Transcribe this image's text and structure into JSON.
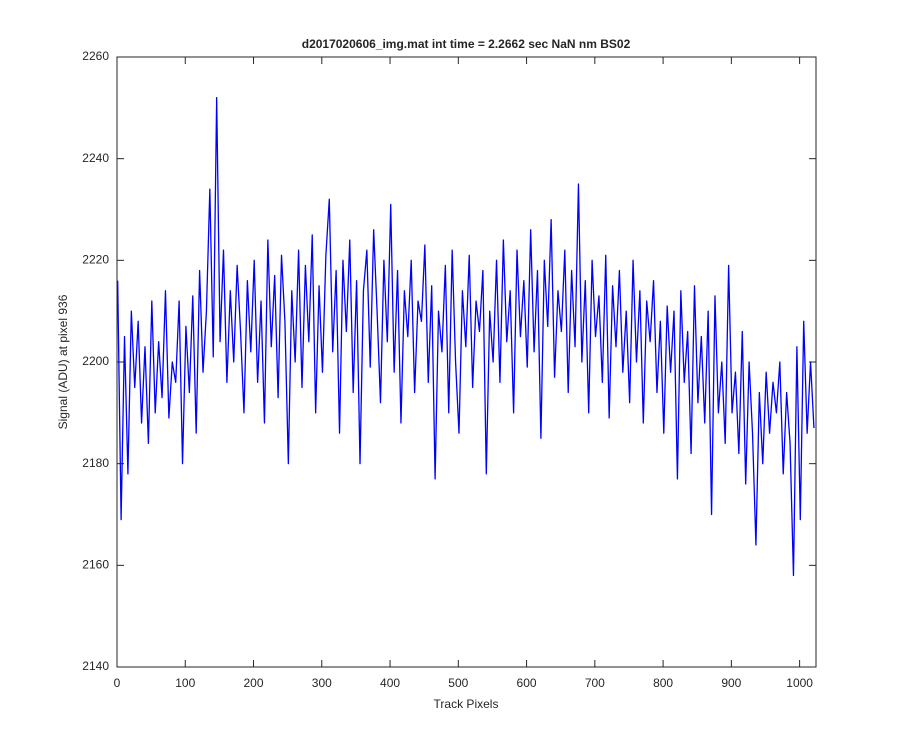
{
  "chart_data": {
    "type": "line",
    "title": "d2017020606_img.mat int time = 2.2662 sec  NaN nm BS02",
    "x_label": "Track Pixels",
    "y_label": "Signal (ADU) at pixel 936",
    "color": "#0000ff",
    "xlim": [
      0,
      1024
    ],
    "ylim": [
      2140,
      2260
    ],
    "xticks": [
      0,
      100,
      200,
      300,
      400,
      500,
      600,
      700,
      800,
      900,
      1000
    ],
    "yticks": [
      2140,
      2160,
      2180,
      2200,
      2220,
      2240,
      2260
    ],
    "x": [
      1,
      6,
      11,
      16,
      21,
      26,
      31,
      36,
      41,
      46,
      51,
      56,
      61,
      66,
      71,
      76,
      81,
      86,
      91,
      96,
      101,
      106,
      111,
      116,
      121,
      126,
      131,
      136,
      141,
      146,
      151,
      156,
      161,
      166,
      171,
      176,
      181,
      186,
      191,
      196,
      201,
      206,
      211,
      216,
      221,
      226,
      231,
      236,
      241,
      246,
      251,
      256,
      261,
      266,
      271,
      276,
      281,
      286,
      291,
      296,
      301,
      306,
      311,
      316,
      321,
      326,
      331,
      336,
      341,
      346,
      351,
      356,
      361,
      366,
      371,
      376,
      381,
      386,
      391,
      396,
      401,
      406,
      411,
      416,
      421,
      426,
      431,
      436,
      441,
      446,
      451,
      456,
      461,
      466,
      471,
      476,
      481,
      486,
      491,
      496,
      501,
      506,
      511,
      516,
      521,
      526,
      531,
      536,
      541,
      546,
      551,
      556,
      561,
      566,
      571,
      576,
      581,
      586,
      591,
      596,
      601,
      606,
      611,
      616,
      621,
      626,
      631,
      636,
      641,
      646,
      651,
      656,
      661,
      666,
      671,
      676,
      681,
      686,
      691,
      696,
      701,
      706,
      711,
      716,
      721,
      726,
      731,
      736,
      741,
      746,
      751,
      756,
      761,
      766,
      771,
      776,
      781,
      786,
      791,
      796,
      801,
      806,
      811,
      816,
      821,
      826,
      831,
      836,
      841,
      846,
      851,
      856,
      861,
      866,
      871,
      876,
      881,
      886,
      891,
      896,
      901,
      906,
      911,
      916,
      921,
      926,
      931,
      936,
      941,
      946,
      951,
      956,
      961,
      966,
      971,
      976,
      981,
      986,
      991,
      996,
      1001,
      1006,
      1011,
      1016,
      1021
    ],
    "values": [
      2216,
      2169,
      2205,
      2178,
      2210,
      2195,
      2208,
      2188,
      2203,
      2184,
      2212,
      2190,
      2204,
      2193,
      2214,
      2189,
      2200,
      2196,
      2212,
      2180,
      2207,
      2194,
      2213,
      2186,
      2218,
      2198,
      2210,
      2234,
      2201,
      2252,
      2204,
      2222,
      2196,
      2214,
      2200,
      2219,
      2206,
      2190,
      2216,
      2202,
      2220,
      2196,
      2212,
      2188,
      2224,
      2203,
      2217,
      2193,
      2221,
      2208,
      2180,
      2214,
      2200,
      2222,
      2195,
      2219,
      2204,
      2225,
      2190,
      2215,
      2198,
      2221,
      2232,
      2202,
      2218,
      2186,
      2220,
      2206,
      2224,
      2194,
      2216,
      2180,
      2214,
      2222,
      2199,
      2226,
      2210,
      2192,
      2220,
      2204,
      2231,
      2198,
      2218,
      2188,
      2214,
      2205,
      2220,
      2194,
      2212,
      2208,
      2223,
      2196,
      2215,
      2177,
      2210,
      2202,
      2219,
      2190,
      2222,
      2200,
      2186,
      2214,
      2203,
      2221,
      2195,
      2212,
      2206,
      2218,
      2178,
      2210,
      2200,
      2220,
      2196,
      2224,
      2204,
      2214,
      2190,
      2222,
      2205,
      2216,
      2199,
      2226,
      2202,
      2218,
      2185,
      2220,
      2207,
      2228,
      2197,
      2214,
      2206,
      2222,
      2194,
      2218,
      2203,
      2235,
      2200,
      2216,
      2190,
      2220,
      2205,
      2213,
      2196,
      2221,
      2189,
      2215,
      2203,
      2218,
      2198,
      2210,
      2192,
      2220,
      2200,
      2214,
      2188,
      2212,
      2204,
      2216,
      2194,
      2208,
      2186,
      2211,
      2198,
      2210,
      2177,
      2214,
      2196,
      2206,
      2182,
      2215,
      2192,
      2205,
      2188,
      2210,
      2170,
      2213,
      2190,
      2200,
      2184,
      2219,
      2190,
      2198,
      2182,
      2206,
      2176,
      2200,
      2186,
      2164,
      2194,
      2180,
      2198,
      2186,
      2196,
      2190,
      2200,
      2178,
      2194,
      2184,
      2158,
      2203,
      2169,
      2208,
      2186,
      2200,
      2187
    ]
  }
}
